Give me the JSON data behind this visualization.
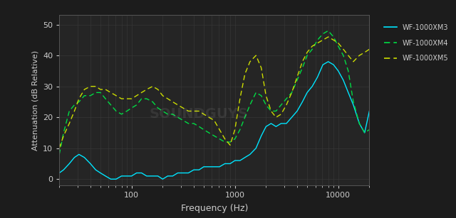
{
  "title": "",
  "xlabel": "Frequency (Hz)",
  "ylabel": "Attenuation (dB Relative)",
  "bg_color": "#1c1c1c",
  "plot_bg_color": "#252525",
  "grid_color": "#3a3a3a",
  "text_color": "#cccccc",
  "xmin": 20,
  "xmax": 20000,
  "ymin": -2,
  "ymax": 53,
  "yticks": [
    0,
    10,
    20,
    30,
    40,
    50
  ],
  "legend": [
    {
      "label": "WF-1000XM3",
      "color": "#00e5ff",
      "linestyle": "solid"
    },
    {
      "label": "WF-1000XM4",
      "color": "#00dd44",
      "linestyle": "dashed"
    },
    {
      "label": "WF-1000XM5",
      "color": "#ccdd00",
      "linestyle": "dashed"
    }
  ],
  "xm3_freq": [
    20,
    22,
    25,
    28,
    31,
    35,
    40,
    45,
    50,
    56,
    63,
    71,
    80,
    90,
    100,
    112,
    125,
    140,
    160,
    180,
    200,
    224,
    250,
    280,
    315,
    355,
    400,
    450,
    500,
    560,
    630,
    710,
    800,
    900,
    1000,
    1120,
    1250,
    1400,
    1600,
    1800,
    2000,
    2240,
    2500,
    2800,
    3150,
    3550,
    4000,
    4500,
    5000,
    5600,
    6300,
    7100,
    8000,
    9000,
    10000,
    11200,
    12500,
    14000,
    16000,
    18000,
    20000
  ],
  "xm3_vals": [
    2,
    3,
    5,
    7,
    8,
    7,
    5,
    3,
    2,
    1,
    0,
    0,
    1,
    1,
    1,
    2,
    2,
    1,
    1,
    1,
    0,
    1,
    1,
    2,
    2,
    2,
    3,
    3,
    4,
    4,
    4,
    4,
    5,
    5,
    6,
    6,
    7,
    8,
    10,
    14,
    17,
    18,
    17,
    18,
    18,
    20,
    22,
    25,
    28,
    30,
    33,
    37,
    38,
    37,
    35,
    32,
    28,
    24,
    18,
    15,
    22
  ],
  "xm4_freq": [
    20,
    22,
    25,
    28,
    31,
    35,
    40,
    45,
    50,
    56,
    63,
    71,
    80,
    90,
    100,
    112,
    125,
    140,
    160,
    180,
    200,
    224,
    250,
    280,
    315,
    355,
    400,
    450,
    500,
    560,
    630,
    710,
    800,
    900,
    1000,
    1120,
    1250,
    1400,
    1600,
    1800,
    2000,
    2240,
    2500,
    2800,
    3150,
    3550,
    4000,
    4500,
    5000,
    5600,
    6300,
    7100,
    8000,
    9000,
    10000,
    11200,
    12500,
    14000,
    16000,
    18000,
    20000
  ],
  "xm4_vals": [
    8,
    15,
    22,
    24,
    25,
    27,
    27,
    28,
    28,
    26,
    24,
    22,
    21,
    22,
    23,
    24,
    26,
    26,
    25,
    23,
    22,
    21,
    21,
    20,
    19,
    18,
    18,
    17,
    16,
    15,
    14,
    13,
    12,
    12,
    13,
    16,
    20,
    24,
    28,
    27,
    24,
    22,
    22,
    24,
    26,
    28,
    32,
    36,
    40,
    42,
    45,
    47,
    48,
    46,
    43,
    40,
    35,
    25,
    18,
    15,
    16
  ],
  "xm5_freq": [
    20,
    22,
    25,
    28,
    31,
    35,
    40,
    45,
    50,
    56,
    63,
    71,
    80,
    90,
    100,
    112,
    125,
    140,
    160,
    180,
    200,
    224,
    250,
    280,
    315,
    355,
    400,
    450,
    500,
    560,
    630,
    710,
    800,
    900,
    1000,
    1120,
    1250,
    1400,
    1600,
    1800,
    2000,
    2240,
    2500,
    2800,
    3150,
    3550,
    4000,
    4500,
    5000,
    5600,
    6300,
    7100,
    8000,
    9000,
    10000,
    11200,
    12500,
    14000,
    16000,
    18000,
    20000
  ],
  "xm5_vals": [
    10,
    14,
    18,
    22,
    26,
    29,
    30,
    30,
    29,
    29,
    28,
    27,
    26,
    26,
    26,
    27,
    28,
    29,
    30,
    29,
    27,
    26,
    25,
    24,
    23,
    22,
    22,
    22,
    21,
    20,
    19,
    16,
    13,
    11,
    16,
    26,
    34,
    38,
    40,
    36,
    27,
    22,
    20,
    21,
    24,
    28,
    33,
    38,
    41,
    43,
    44,
    45,
    46,
    45,
    44,
    42,
    40,
    38,
    40,
    41,
    42
  ]
}
